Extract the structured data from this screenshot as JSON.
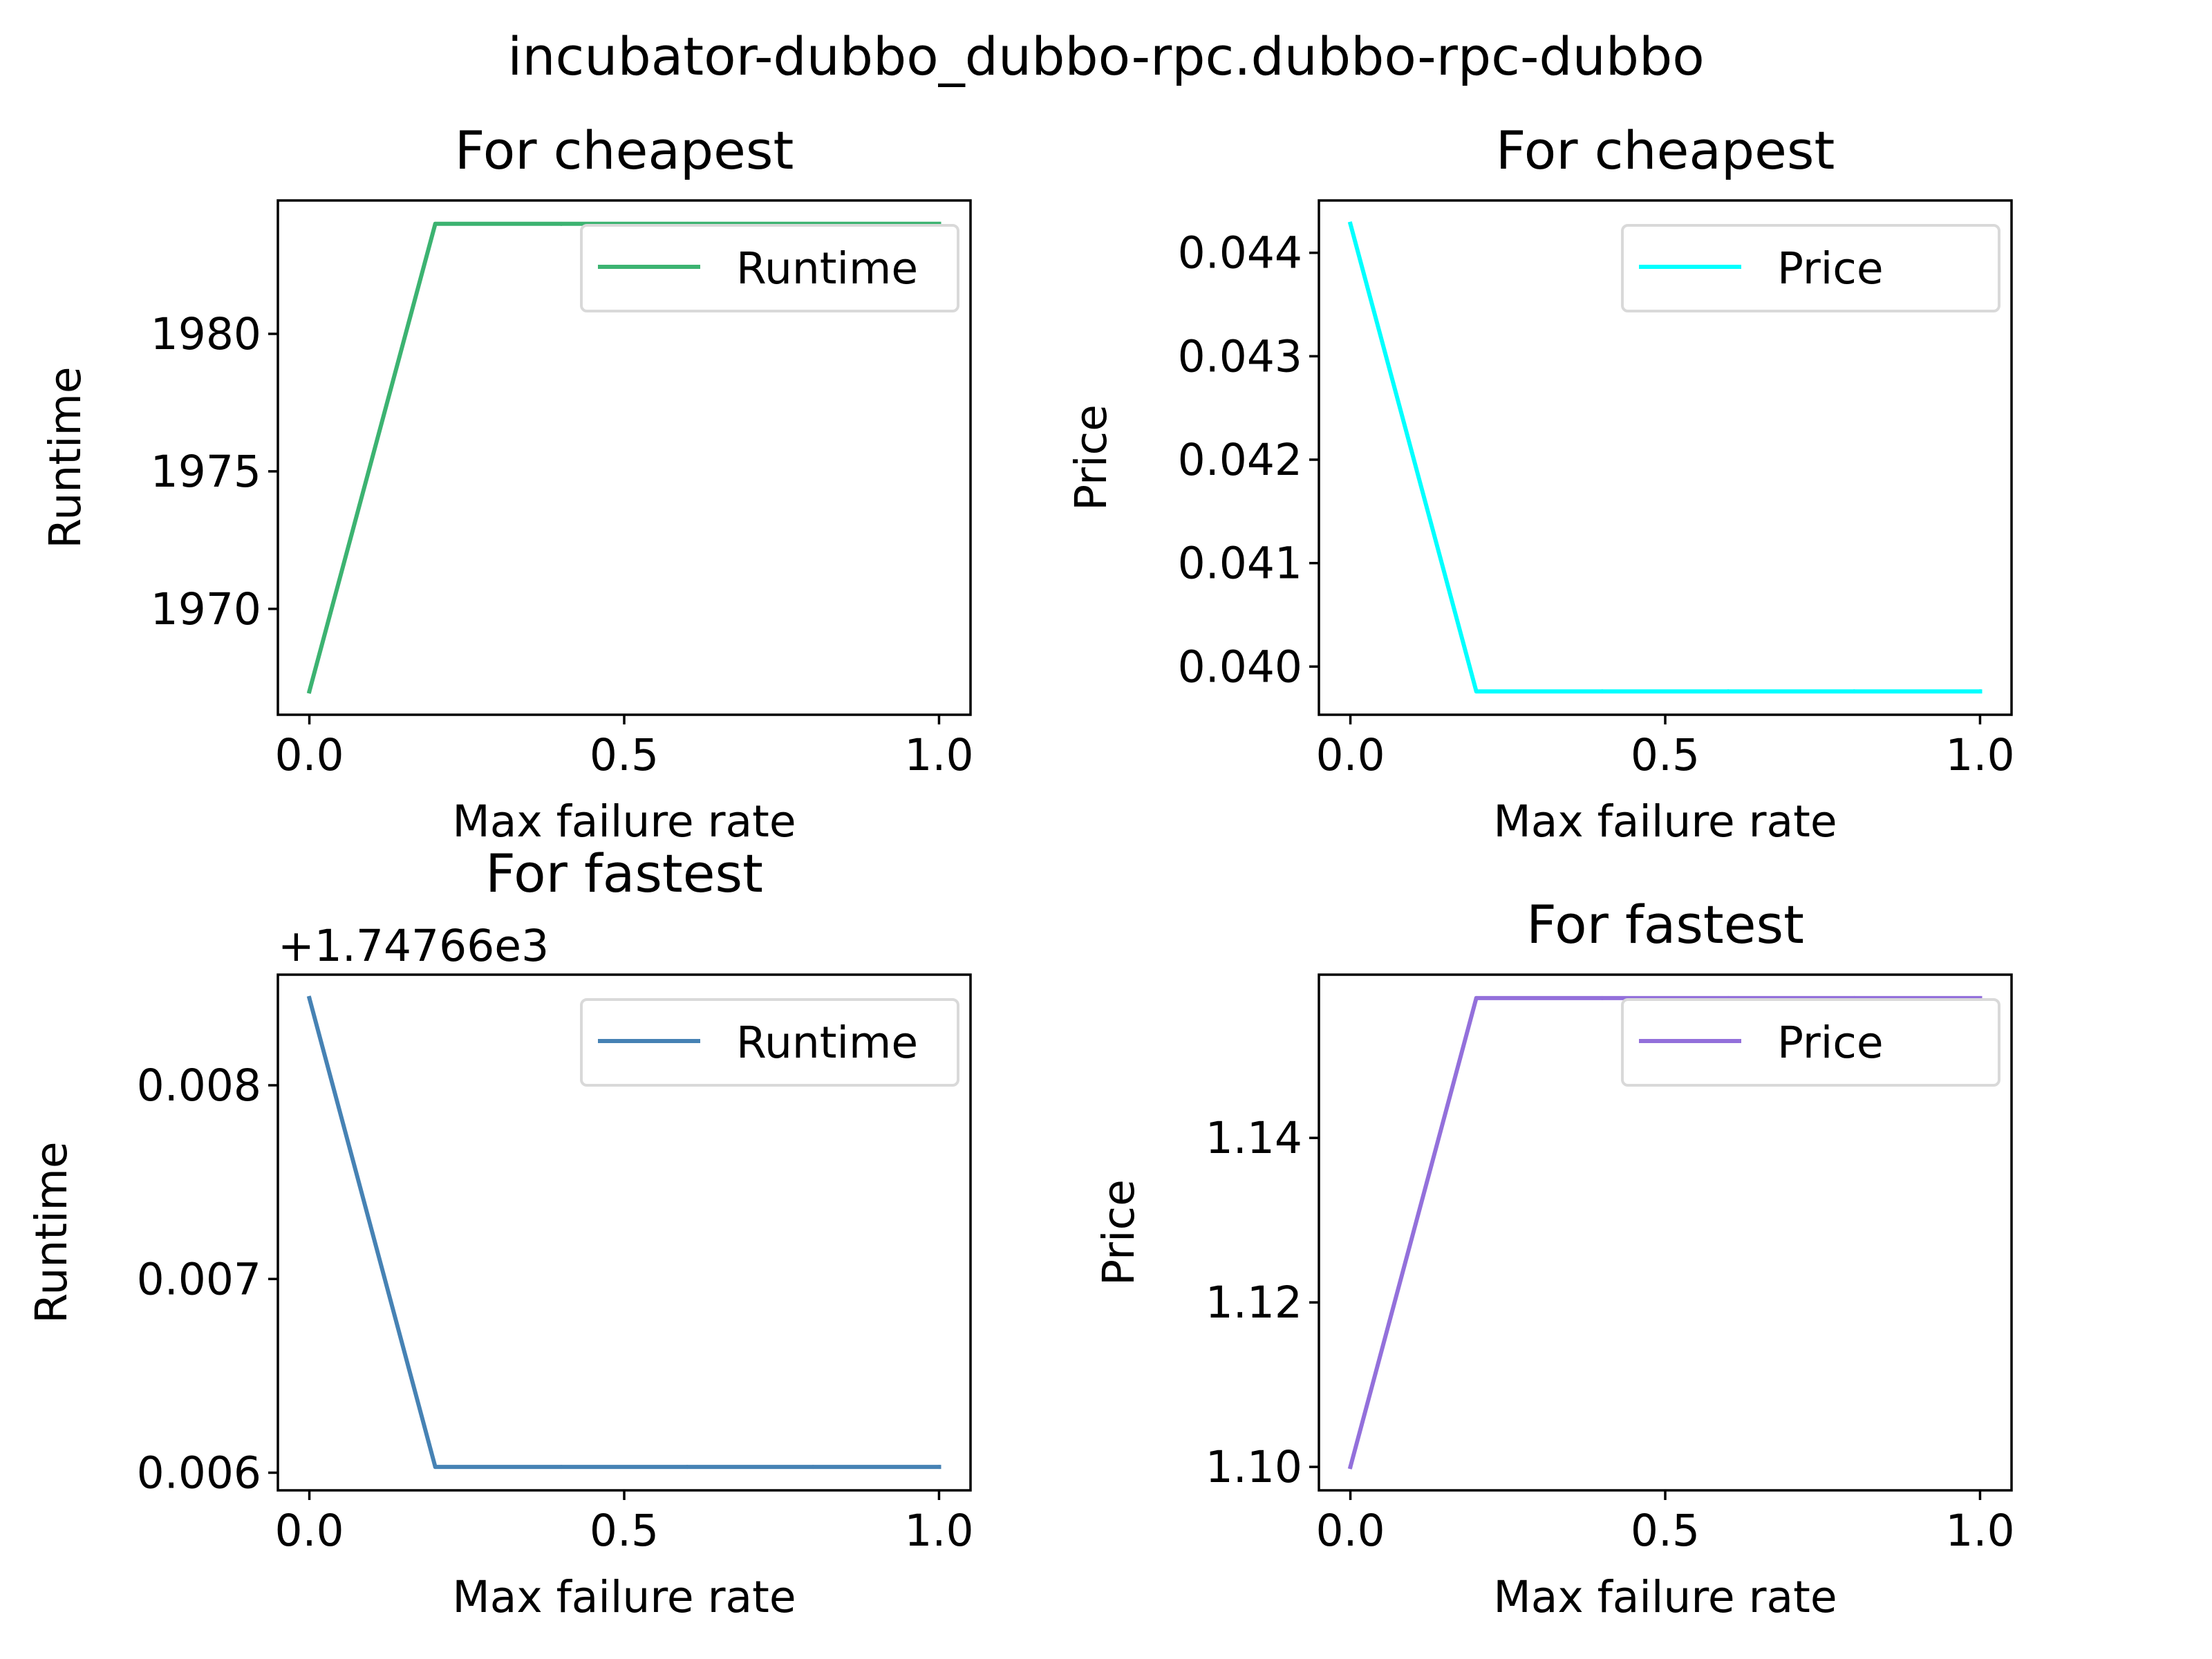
{
  "figure": {
    "suptitle": "incubator-dubbo_dubbo-rpc.dubbo-rpc-dubbo"
  },
  "chart_data": [
    {
      "type": "line",
      "title": "For cheapest",
      "xlabel": "Max failure rate",
      "ylabel": "Runtime",
      "x": [
        0.0,
        0.2,
        0.4,
        0.6,
        0.8,
        1.0
      ],
      "series": [
        {
          "name": "Runtime",
          "color": "#3cb371",
          "values": [
            1967.0,
            1984.0,
            1984.0,
            1984.0,
            1984.0,
            1984.0
          ]
        }
      ],
      "xlim": [
        -0.05,
        1.05
      ],
      "ylim": [
        1966.15,
        1984.85
      ],
      "xticks": [
        0.0,
        0.5,
        1.0
      ],
      "xtick_labels": [
        "0.0",
        "0.5",
        "1.0"
      ],
      "yticks": [
        1970,
        1975,
        1980
      ],
      "ytick_labels": [
        "1970",
        "1975",
        "1980"
      ],
      "offset_text": "",
      "legend_position": "upper right",
      "grid": false
    },
    {
      "type": "line",
      "title": "For cheapest",
      "xlabel": "Max failure rate",
      "ylabel": "Price",
      "x": [
        0.0,
        0.2,
        0.4,
        0.6,
        0.8,
        1.0
      ],
      "series": [
        {
          "name": "Price",
          "color": "#00ffff",
          "values": [
            0.04428,
            0.03976,
            0.03976,
            0.03976,
            0.03976,
            0.03976
          ]
        }
      ],
      "xlim": [
        -0.05,
        1.05
      ],
      "ylim": [
        0.039534,
        0.044506
      ],
      "xticks": [
        0.0,
        0.5,
        1.0
      ],
      "xtick_labels": [
        "0.0",
        "0.5",
        "1.0"
      ],
      "yticks": [
        0.04,
        0.041,
        0.042,
        0.043,
        0.044
      ],
      "ytick_labels": [
        "0.040",
        "0.041",
        "0.042",
        "0.043",
        "0.044"
      ],
      "offset_text": "",
      "legend_position": "upper right",
      "grid": false
    },
    {
      "type": "line",
      "title": "For fastest",
      "xlabel": "Max failure rate",
      "ylabel": "Runtime",
      "x": [
        0.0,
        0.2,
        0.4,
        0.6,
        0.8,
        1.0
      ],
      "series": [
        {
          "name": "Runtime",
          "color": "#4682b4",
          "values": [
            0.00845,
            0.00603,
            0.00603,
            0.00603,
            0.00603,
            0.00603
          ]
        }
      ],
      "xlim": [
        -0.05,
        1.05
      ],
      "ylim": [
        0.005909,
        0.008571
      ],
      "xticks": [
        0.0,
        0.5,
        1.0
      ],
      "xtick_labels": [
        "0.0",
        "0.5",
        "1.0"
      ],
      "yticks": [
        0.006,
        0.007,
        0.008
      ],
      "ytick_labels": [
        "0.006",
        "0.007",
        "0.008"
      ],
      "offset_text": "+1.74766e3",
      "legend_position": "upper right",
      "grid": false
    },
    {
      "type": "line",
      "title": "For fastest",
      "xlabel": "Max failure rate",
      "ylabel": "Price",
      "x": [
        0.0,
        0.2,
        0.4,
        0.6,
        0.8,
        1.0
      ],
      "series": [
        {
          "name": "Price",
          "color": "#9370db",
          "values": [
            1.1,
            1.157,
            1.157,
            1.157,
            1.157,
            1.157
          ]
        }
      ],
      "xlim": [
        -0.05,
        1.05
      ],
      "ylim": [
        1.09715,
        1.15985
      ],
      "xticks": [
        0.0,
        0.5,
        1.0
      ],
      "xtick_labels": [
        "0.0",
        "0.5",
        "1.0"
      ],
      "yticks": [
        1.1,
        1.12,
        1.14
      ],
      "ytick_labels": [
        "1.10",
        "1.12",
        "1.14"
      ],
      "offset_text": "",
      "legend_position": "upper right",
      "grid": false
    }
  ]
}
